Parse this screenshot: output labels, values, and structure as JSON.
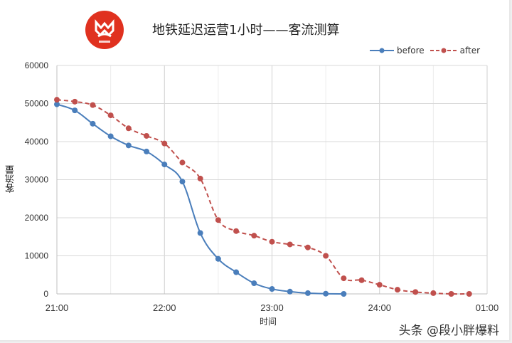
{
  "header": {
    "title": "地铁延迟运营1小时——客流测算",
    "logo_color": "#e0311f",
    "logo_icon": "mm-logo-icon"
  },
  "legend": {
    "before_label": "before",
    "after_label": "after"
  },
  "axes": {
    "ylabel": "客流量",
    "xlabel": "时间",
    "yticks": [
      "0",
      "10000",
      "20000",
      "30000",
      "40000",
      "50000",
      "60000"
    ],
    "xticks": [
      "21:00",
      "22:00",
      "23:00",
      "24:00",
      "01:00"
    ]
  },
  "watermark": "头条 @段小胖爆料",
  "colors": {
    "before": "#4a7ebb",
    "after": "#c0504d",
    "grid": "#d9d9d9"
  },
  "chart_data": {
    "type": "line",
    "title": "地铁延迟运营1小时——客流测算",
    "xlabel": "时间",
    "ylabel": "客流量",
    "ylim": [
      0,
      60000
    ],
    "xlim_minutes_from_2100": [
      0,
      240
    ],
    "grid": true,
    "legend_position": "top-right",
    "x_step_minutes": 10,
    "x": [
      "21:00",
      "21:10",
      "21:20",
      "21:30",
      "21:40",
      "21:50",
      "22:00",
      "22:10",
      "22:20",
      "22:30",
      "22:40",
      "22:50",
      "23:00",
      "23:10",
      "23:20",
      "23:30",
      "23:40",
      "23:50",
      "24:00",
      "24:10",
      "24:20",
      "24:30",
      "24:40",
      "24:50"
    ],
    "series": [
      {
        "name": "before",
        "style": "solid",
        "values": [
          49800,
          48200,
          44700,
          41400,
          39000,
          37400,
          34000,
          29500,
          16000,
          9200,
          5700,
          2800,
          1300,
          600,
          200,
          50,
          0
        ]
      },
      {
        "name": "after",
        "style": "dashed",
        "values": [
          51000,
          50500,
          49600,
          46900,
          43500,
          41500,
          39500,
          34500,
          30300,
          19400,
          16500,
          15300,
          13700,
          13000,
          12200,
          10000,
          4100,
          3600,
          2400,
          1100,
          500,
          200,
          0,
          0
        ]
      }
    ]
  }
}
